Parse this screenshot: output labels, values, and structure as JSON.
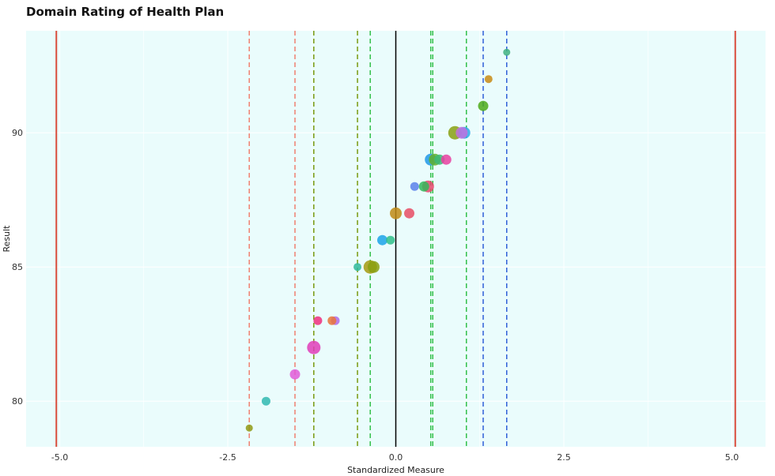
{
  "chart_data": {
    "type": "scatter",
    "title": "Domain Rating of Health Plan",
    "xlabel": "Standardized Measure",
    "ylabel": "Result",
    "xlim": [
      -5.5,
      5.5
    ],
    "ylim": [
      78.3,
      93.8
    ],
    "x_ticks": [
      -5.0,
      -2.5,
      0.0,
      2.5,
      5.0
    ],
    "x_tick_labels": [
      "-5.0",
      "-2.5",
      "0.0",
      "2.5",
      "5.0"
    ],
    "y_ticks": [
      80,
      85,
      90
    ],
    "y_tick_labels": [
      "80",
      "85",
      "90"
    ],
    "grid": true,
    "background": "#eafcfc",
    "gridline_color": "#ffffff",
    "zero_line": {
      "x": 0.0,
      "color": "#000000"
    },
    "limit_lines": [
      {
        "x": -5.05,
        "color": "#d94c3c",
        "style": "solid"
      },
      {
        "x": 5.05,
        "color": "#d94c3c",
        "style": "solid"
      }
    ],
    "reference_lines": [
      {
        "x": -2.18,
        "color": "#f08070",
        "style": "dashed"
      },
      {
        "x": -1.5,
        "color": "#f08070",
        "style": "dashed"
      },
      {
        "x": -1.22,
        "color": "#7a9a10",
        "style": "dashed"
      },
      {
        "x": -0.57,
        "color": "#7a9a10",
        "style": "dashed"
      },
      {
        "x": -0.38,
        "color": "#33c04a",
        "style": "dashed"
      },
      {
        "x": 0.52,
        "color": "#33c04a",
        "style": "dashed"
      },
      {
        "x": 0.55,
        "color": "#33c04a",
        "style": "dashed"
      },
      {
        "x": 1.05,
        "color": "#33c04a",
        "style": "dashed"
      },
      {
        "x": 1.3,
        "color": "#2f5fd8",
        "style": "dashed"
      },
      {
        "x": 1.65,
        "color": "#2f5fd8",
        "style": "dashed"
      }
    ],
    "points": [
      {
        "x": -2.18,
        "y": 79,
        "size": 9,
        "color": "#8f9a14"
      },
      {
        "x": -1.93,
        "y": 80,
        "size": 11,
        "color": "#30b8b0"
      },
      {
        "x": -1.5,
        "y": 81,
        "size": 13,
        "color": "#e05ad8"
      },
      {
        "x": -1.22,
        "y": 82,
        "size": 17,
        "color": "#e03cb8"
      },
      {
        "x": -1.16,
        "y": 83,
        "size": 11,
        "color": "#ef2e7d"
      },
      {
        "x": -0.9,
        "y": 83,
        "size": 11,
        "color": "#b06ae8"
      },
      {
        "x": -0.95,
        "y": 83,
        "size": 11,
        "color": "#e8743a"
      },
      {
        "x": -0.57,
        "y": 85,
        "size": 10,
        "color": "#2fb89a"
      },
      {
        "x": -0.38,
        "y": 85,
        "size": 17,
        "color": "#a49a10"
      },
      {
        "x": -0.33,
        "y": 85,
        "size": 15,
        "color": "#8aa012"
      },
      {
        "x": -0.2,
        "y": 86,
        "size": 13,
        "color": "#1ba3e8"
      },
      {
        "x": -0.08,
        "y": 86,
        "size": 11,
        "color": "#2fc08a"
      },
      {
        "x": 0.0,
        "y": 87,
        "size": 15,
        "color": "#c08a14"
      },
      {
        "x": 0.2,
        "y": 87,
        "size": 13,
        "color": "#e84c64"
      },
      {
        "x": 0.28,
        "y": 88,
        "size": 11,
        "color": "#5a80ea"
      },
      {
        "x": 0.48,
        "y": 88,
        "size": 15,
        "color": "#e8466c"
      },
      {
        "x": 0.42,
        "y": 88,
        "size": 13,
        "color": "#33b85a"
      },
      {
        "x": 0.52,
        "y": 89,
        "size": 15,
        "color": "#2098e8"
      },
      {
        "x": 0.58,
        "y": 89,
        "size": 15,
        "color": "#60b028"
      },
      {
        "x": 0.65,
        "y": 89,
        "size": 13,
        "color": "#3cb878"
      },
      {
        "x": 0.75,
        "y": 89,
        "size": 13,
        "color": "#e840a0"
      },
      {
        "x": 0.88,
        "y": 90,
        "size": 17,
        "color": "#88a010"
      },
      {
        "x": 1.02,
        "y": 90,
        "size": 15,
        "color": "#2ea8e8"
      },
      {
        "x": 0.98,
        "y": 90,
        "size": 15,
        "color": "#c070e0"
      },
      {
        "x": 1.3,
        "y": 91,
        "size": 13,
        "color": "#4caa18"
      },
      {
        "x": 1.38,
        "y": 92,
        "size": 10,
        "color": "#c88a14"
      },
      {
        "x": 1.65,
        "y": 93,
        "size": 9,
        "color": "#40b080"
      }
    ]
  }
}
